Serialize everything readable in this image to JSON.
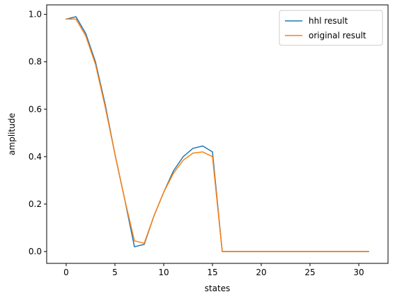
{
  "chart_data": {
    "type": "line",
    "title": "",
    "xlabel": "states",
    "ylabel": "amplitude",
    "xlim": [
      -2.0,
      33.0
    ],
    "ylim": [
      -0.05,
      1.04
    ],
    "xticks": [
      0,
      5,
      10,
      15,
      20,
      25,
      30
    ],
    "yticks": [
      0.0,
      0.2,
      0.4,
      0.6,
      0.8,
      1.0
    ],
    "xtick_labels": [
      "0",
      "5",
      "10",
      "15",
      "20",
      "25",
      "30"
    ],
    "ytick_labels": [
      "0.0",
      "0.2",
      "0.4",
      "0.6",
      "0.8",
      "1.0"
    ],
    "grid": false,
    "legend_position": "top-right",
    "x": [
      0,
      1,
      2,
      3,
      4,
      5,
      6,
      7,
      8,
      9,
      10,
      11,
      12,
      13,
      14,
      15,
      16,
      17,
      18,
      19,
      20,
      21,
      22,
      23,
      24,
      25,
      26,
      27,
      28,
      29,
      30,
      31
    ],
    "series": [
      {
        "name": "hhl result",
        "color": "#1f77b4",
        "values": [
          0.98,
          0.99,
          0.92,
          0.8,
          0.62,
          0.41,
          0.22,
          0.02,
          0.03,
          0.15,
          0.25,
          0.34,
          0.4,
          0.435,
          0.445,
          0.42,
          0.0,
          0.0,
          0.0,
          0.0,
          0.0,
          0.0,
          0.0,
          0.0,
          0.0,
          0.0,
          0.0,
          0.0,
          0.0,
          0.0,
          0.0,
          0.0
        ]
      },
      {
        "name": "original result",
        "color": "#ff7f0e",
        "values": [
          0.98,
          0.98,
          0.91,
          0.79,
          0.61,
          0.41,
          0.22,
          0.045,
          0.035,
          0.15,
          0.25,
          0.33,
          0.385,
          0.415,
          0.42,
          0.4,
          0.0,
          0.0,
          0.0,
          0.0,
          0.0,
          0.0,
          0.0,
          0.0,
          0.0,
          0.0,
          0.0,
          0.0,
          0.0,
          0.0,
          0.0,
          0.0
        ]
      }
    ]
  }
}
